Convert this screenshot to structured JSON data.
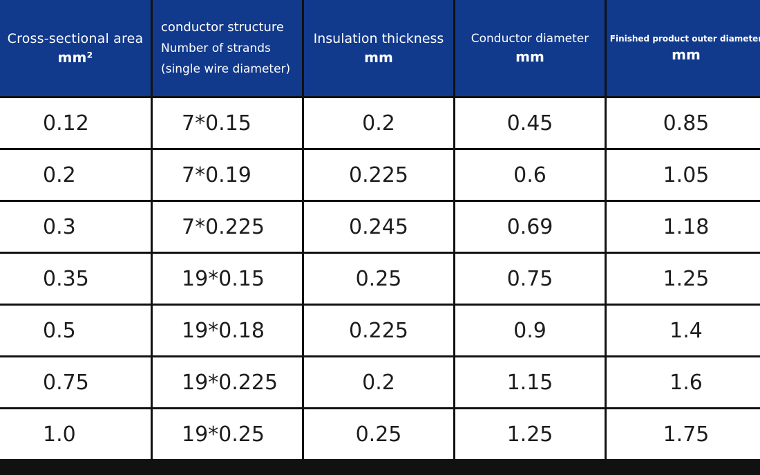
{
  "table": {
    "headers": [
      {
        "line1": "Cross-sectional area",
        "unit": "mm²"
      },
      {
        "line1": "conductor structure",
        "line2": "Number of strands",
        "line3": "(single wire diameter)"
      },
      {
        "line1": "Insulation thickness",
        "unit": "mm"
      },
      {
        "line1": "Conductor diameter",
        "unit": "mm"
      },
      {
        "line1": "Finished product outer diameter",
        "unit": "mm"
      }
    ],
    "rows": [
      [
        "0.12",
        "7*0.15",
        "0.2",
        "0.45",
        "0.85"
      ],
      [
        "0.2",
        "7*0.19",
        "0.225",
        "0.6",
        "1.05"
      ],
      [
        "0.3",
        "7*0.225",
        "0.245",
        "0.69",
        "1.18"
      ],
      [
        "0.35",
        "19*0.15",
        "0.25",
        "0.75",
        "1.25"
      ],
      [
        "0.5",
        "19*0.18",
        "0.225",
        "0.9",
        "1.4"
      ],
      [
        "0.75",
        "19*0.225",
        "0.2",
        "1.15",
        "1.6"
      ],
      [
        "1.0",
        "19*0.25",
        "0.25",
        "1.25",
        "1.75"
      ]
    ]
  },
  "colors": {
    "header_bg": "#11398c",
    "header_text": "#ffffff",
    "grid": "#111111",
    "cell_text": "#1d1d1d"
  }
}
